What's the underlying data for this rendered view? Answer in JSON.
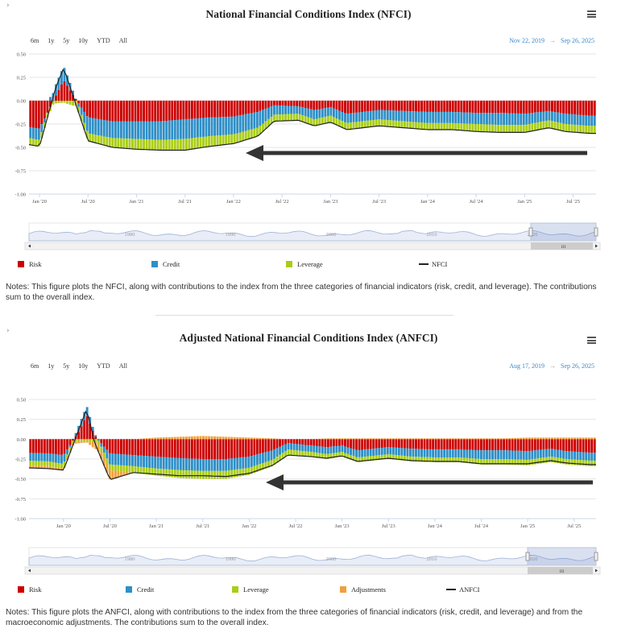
{
  "colors": {
    "risk": "#cc0000",
    "credit": "#2e8fc7",
    "leverage": "#aacd15",
    "adjustments": "#f0a03c",
    "index_line": "#222222",
    "navigator": "#9fb2d6",
    "date_range": "#3a87c8"
  },
  "icons": [
    "menu-icon",
    "chevron-right-icon",
    "arrow-left-icon"
  ],
  "range_buttons": [
    "6m",
    "1y",
    "5y",
    "10y",
    "YTD",
    "All"
  ],
  "nfci": {
    "expand": "›",
    "title": "National Financial Conditions Index (NFCI)",
    "date_from": "Nov 22, 2019",
    "date_arrow": "→",
    "date_to": "Sep 26, 2025",
    "legend": [
      "Risk",
      "Credit",
      "Leverage",
      "NFCI"
    ],
    "notes": "Notes: This figure plots the NFCI, along with contributions to the index from the three categories of financial indicators (risk, credit, and leverage). The contributions sum to the overall index.",
    "navigator_labels": [
      "1980",
      "1990",
      "2000",
      "2010",
      "2020"
    ],
    "scroll_grip": "III"
  },
  "anfci": {
    "expand": "›",
    "title": "Adjusted National Financial Conditions Index (ANFCI)",
    "date_from": "Aug 17, 2019",
    "date_arrow": "→",
    "date_to": "Sep 26, 2025",
    "legend": [
      "Risk",
      "Credit",
      "Leverage",
      "Adjustments",
      "ANFCI"
    ],
    "notes": "Notes: This figure plots the ANFCI, along with contributions to the index from the three categories of financial indicators (risk, credit, and leverage) and from the macroeconomic adjustments. The contributions sum to the overall index.",
    "navigator_labels": [
      "1980",
      "1990",
      "2000",
      "2010",
      "2020"
    ],
    "scroll_grip": "III"
  },
  "chart_data": [
    {
      "type": "bar",
      "title": "National Financial Conditions Index (NFCI)",
      "x_range": [
        "2019-11-22",
        "2025-09-26"
      ],
      "x_ticks": [
        "Jan '20",
        "Jul '20",
        "Jan '21",
        "Jul '21",
        "Jan '22",
        "Jul '22",
        "Jan '23",
        "Jul '23",
        "Jan '24",
        "Jul '24",
        "Jan '25",
        "Jul '25"
      ],
      "y_ticks": [
        "0.50",
        "0.25",
        "0.00",
        "-0.25",
        "-0.50",
        "-0.75",
        "-1.00"
      ],
      "ylim": [
        -1.0,
        0.5
      ],
      "stacked": true,
      "legend_position": "bottom",
      "x": [
        "2019-11",
        "2020-01",
        "2020-03",
        "2020-04",
        "2020-05",
        "2020-07",
        "2020-10",
        "2021-01",
        "2021-04",
        "2021-07",
        "2021-10",
        "2022-01",
        "2022-04",
        "2022-06",
        "2022-09",
        "2022-11",
        "2023-01",
        "2023-03",
        "2023-05",
        "2023-07",
        "2023-10",
        "2024-01",
        "2024-04",
        "2024-07",
        "2024-10",
        "2025-01",
        "2025-04",
        "2025-06",
        "2025-09"
      ],
      "series": [
        {
          "name": "Risk",
          "values": [
            -0.27,
            -0.3,
            0.05,
            0.22,
            0.08,
            -0.18,
            -0.22,
            -0.22,
            -0.22,
            -0.2,
            -0.18,
            -0.17,
            -0.12,
            -0.05,
            -0.06,
            -0.1,
            -0.07,
            -0.14,
            -0.12,
            -0.1,
            -0.11,
            -0.12,
            -0.12,
            -0.13,
            -0.13,
            -0.14,
            -0.11,
            -0.14,
            -0.16
          ]
        },
        {
          "name": "Credit",
          "values": [
            -0.12,
            -0.12,
            0.12,
            0.15,
            0.06,
            -0.17,
            -0.18,
            -0.19,
            -0.2,
            -0.21,
            -0.2,
            -0.19,
            -0.17,
            -0.1,
            -0.08,
            -0.1,
            -0.09,
            -0.1,
            -0.1,
            -0.1,
            -0.11,
            -0.12,
            -0.12,
            -0.12,
            -0.13,
            -0.12,
            -0.1,
            -0.11,
            -0.11
          ]
        },
        {
          "name": "Leverage",
          "values": [
            -0.07,
            -0.07,
            -0.03,
            -0.02,
            -0.05,
            -0.08,
            -0.1,
            -0.11,
            -0.11,
            -0.12,
            -0.11,
            -0.1,
            -0.09,
            -0.07,
            -0.07,
            -0.07,
            -0.07,
            -0.07,
            -0.07,
            -0.07,
            -0.07,
            -0.07,
            -0.07,
            -0.08,
            -0.08,
            -0.08,
            -0.08,
            -0.08,
            -0.08
          ]
        }
      ],
      "line": {
        "name": "NFCI",
        "values": [
          -0.46,
          -0.49,
          0.14,
          0.35,
          0.09,
          -0.43,
          -0.5,
          -0.52,
          -0.53,
          -0.53,
          -0.49,
          -0.46,
          -0.38,
          -0.22,
          -0.21,
          -0.27,
          -0.23,
          -0.31,
          -0.29,
          -0.27,
          -0.29,
          -0.31,
          -0.31,
          -0.33,
          -0.34,
          -0.34,
          -0.29,
          -0.33,
          -0.35
        ]
      }
    },
    {
      "type": "bar",
      "title": "Adjusted National Financial Conditions Index (ANFCI)",
      "x_range": [
        "2019-08-17",
        "2025-09-26"
      ],
      "x_ticks": [
        "Jan '20",
        "Jul '20",
        "Jan '21",
        "Jul '21",
        "Jan '22",
        "Jul '22",
        "Jan '23",
        "Jul '23",
        "Jan '24",
        "Jul '24",
        "Jan '25",
        "Jul '25"
      ],
      "y_ticks": [
        "0.50",
        "0.25",
        "0.00",
        "-0.25",
        "-0.50",
        "-0.75",
        "-1.00"
      ],
      "ylim": [
        -1.0,
        0.5
      ],
      "stacked": true,
      "legend_position": "bottom",
      "x": [
        "2019-08",
        "2019-11",
        "2020-01",
        "2020-03",
        "2020-04",
        "2020-05",
        "2020-07",
        "2020-10",
        "2021-01",
        "2021-04",
        "2021-07",
        "2021-10",
        "2022-01",
        "2022-04",
        "2022-06",
        "2022-09",
        "2022-11",
        "2023-01",
        "2023-03",
        "2023-05",
        "2023-07",
        "2023-10",
        "2024-01",
        "2024-04",
        "2024-07",
        "2024-10",
        "2025-01",
        "2025-04",
        "2025-06",
        "2025-09"
      ],
      "series": [
        {
          "name": "Risk",
          "values": [
            -0.17,
            -0.18,
            -0.2,
            0.1,
            0.3,
            0.05,
            -0.18,
            -0.2,
            -0.22,
            -0.24,
            -0.25,
            -0.25,
            -0.22,
            -0.14,
            -0.05,
            -0.08,
            -0.1,
            -0.08,
            -0.14,
            -0.12,
            -0.1,
            -0.12,
            -0.13,
            -0.13,
            -0.14,
            -0.14,
            -0.15,
            -0.12,
            -0.15,
            -0.17
          ]
        },
        {
          "name": "Credit",
          "values": [
            -0.1,
            -0.1,
            -0.11,
            0.08,
            0.12,
            0.03,
            -0.14,
            -0.14,
            -0.15,
            -0.15,
            -0.15,
            -0.15,
            -0.14,
            -0.12,
            -0.08,
            -0.08,
            -0.09,
            -0.08,
            -0.09,
            -0.09,
            -0.09,
            -0.1,
            -0.1,
            -0.1,
            -0.11,
            -0.11,
            -0.11,
            -0.1,
            -0.1,
            -0.1
          ]
        },
        {
          "name": "Leverage",
          "values": [
            -0.06,
            -0.06,
            -0.06,
            -0.02,
            -0.02,
            -0.04,
            -0.07,
            -0.08,
            -0.09,
            -0.1,
            -0.1,
            -0.1,
            -0.09,
            -0.08,
            -0.07,
            -0.06,
            -0.06,
            -0.06,
            -0.06,
            -0.06,
            -0.06,
            -0.06,
            -0.06,
            -0.06,
            -0.07,
            -0.07,
            -0.07,
            -0.07,
            -0.07,
            -0.07
          ]
        },
        {
          "name": "Adjustments",
          "values": [
            -0.03,
            -0.03,
            -0.02,
            -0.03,
            -0.02,
            -0.08,
            -0.12,
            0.0,
            0.02,
            0.03,
            0.04,
            0.03,
            0.02,
            0.01,
            0.0,
            0.0,
            0.01,
            0.01,
            0.01,
            0.01,
            0.01,
            0.01,
            0.01,
            0.01,
            0.01,
            0.01,
            0.02,
            0.02,
            0.02,
            0.02
          ]
        }
      ],
      "line": {
        "name": "ANFCI",
        "values": [
          -0.36,
          -0.37,
          -0.39,
          0.13,
          0.38,
          -0.04,
          -0.51,
          -0.42,
          -0.44,
          -0.46,
          -0.46,
          -0.47,
          -0.43,
          -0.33,
          -0.2,
          -0.22,
          -0.24,
          -0.21,
          -0.28,
          -0.26,
          -0.24,
          -0.27,
          -0.28,
          -0.28,
          -0.31,
          -0.31,
          -0.31,
          -0.27,
          -0.3,
          -0.32
        ]
      }
    }
  ]
}
